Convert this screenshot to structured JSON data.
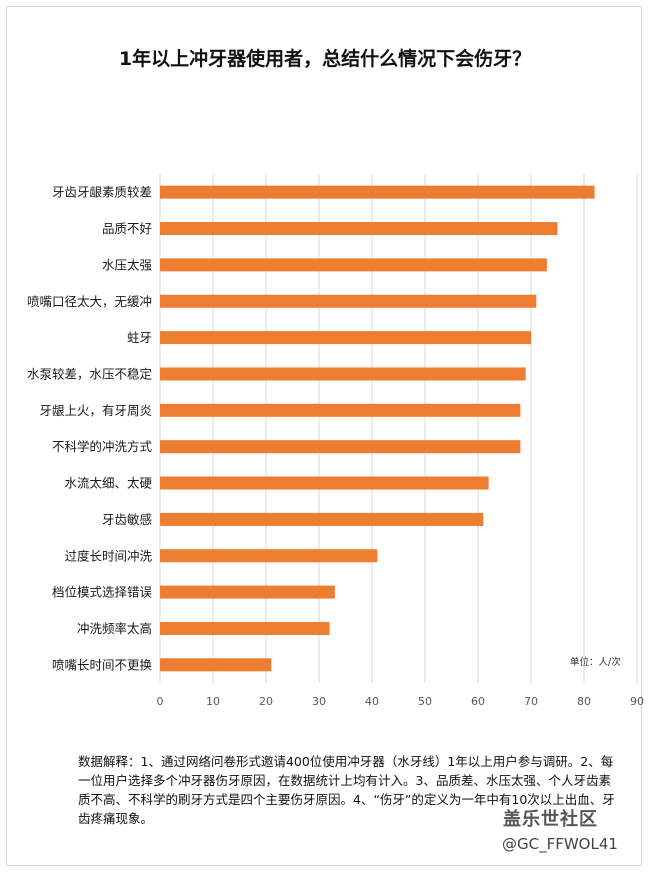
{
  "chart_data": {
    "type": "bar",
    "orientation": "horizontal",
    "title": "1年以上冲牙器使用者，总结什么情况下会伤牙？",
    "unit_label": "单位：人/次",
    "categories": [
      "牙齿牙龈素质较差",
      "品质不好",
      "水压太强",
      "喷嘴口径太大，无缓冲",
      "蛀牙",
      "水泵较差，水压不稳定",
      "牙龈上火，有牙周炎",
      "不科学的冲洗方式",
      "水流太细、太硬",
      "牙齿敏感",
      "过度长时间冲洗",
      "档位模式选择错误",
      "冲洗频率太高",
      "喷嘴长时间不更换"
    ],
    "values": [
      82,
      75,
      73,
      71,
      70,
      69,
      68,
      68,
      62,
      61,
      41,
      33,
      32,
      21
    ],
    "xlim": [
      0,
      90
    ],
    "xticks": [
      0,
      10,
      20,
      30,
      40,
      50,
      60,
      70,
      80,
      90
    ],
    "grid": true,
    "bar_color": "#ED7D31"
  },
  "note": "数据解释：1、通过网络问卷形式邀请400位使用冲牙器（水牙线）1年以上用户参与调研。2、每一位用户选择多个冲牙器伤牙原因，在数据统计上均有计入。3、品质差、水压太强、个人牙齿素质不高、不科学的刷牙方式是四个主要伤牙原因。4、“伤牙”的定义为一年中有10次以上出血、牙齿疼痛现象。",
  "watermark": {
    "main": "盖乐世社区",
    "sub": "@GC_FFWOL41"
  }
}
